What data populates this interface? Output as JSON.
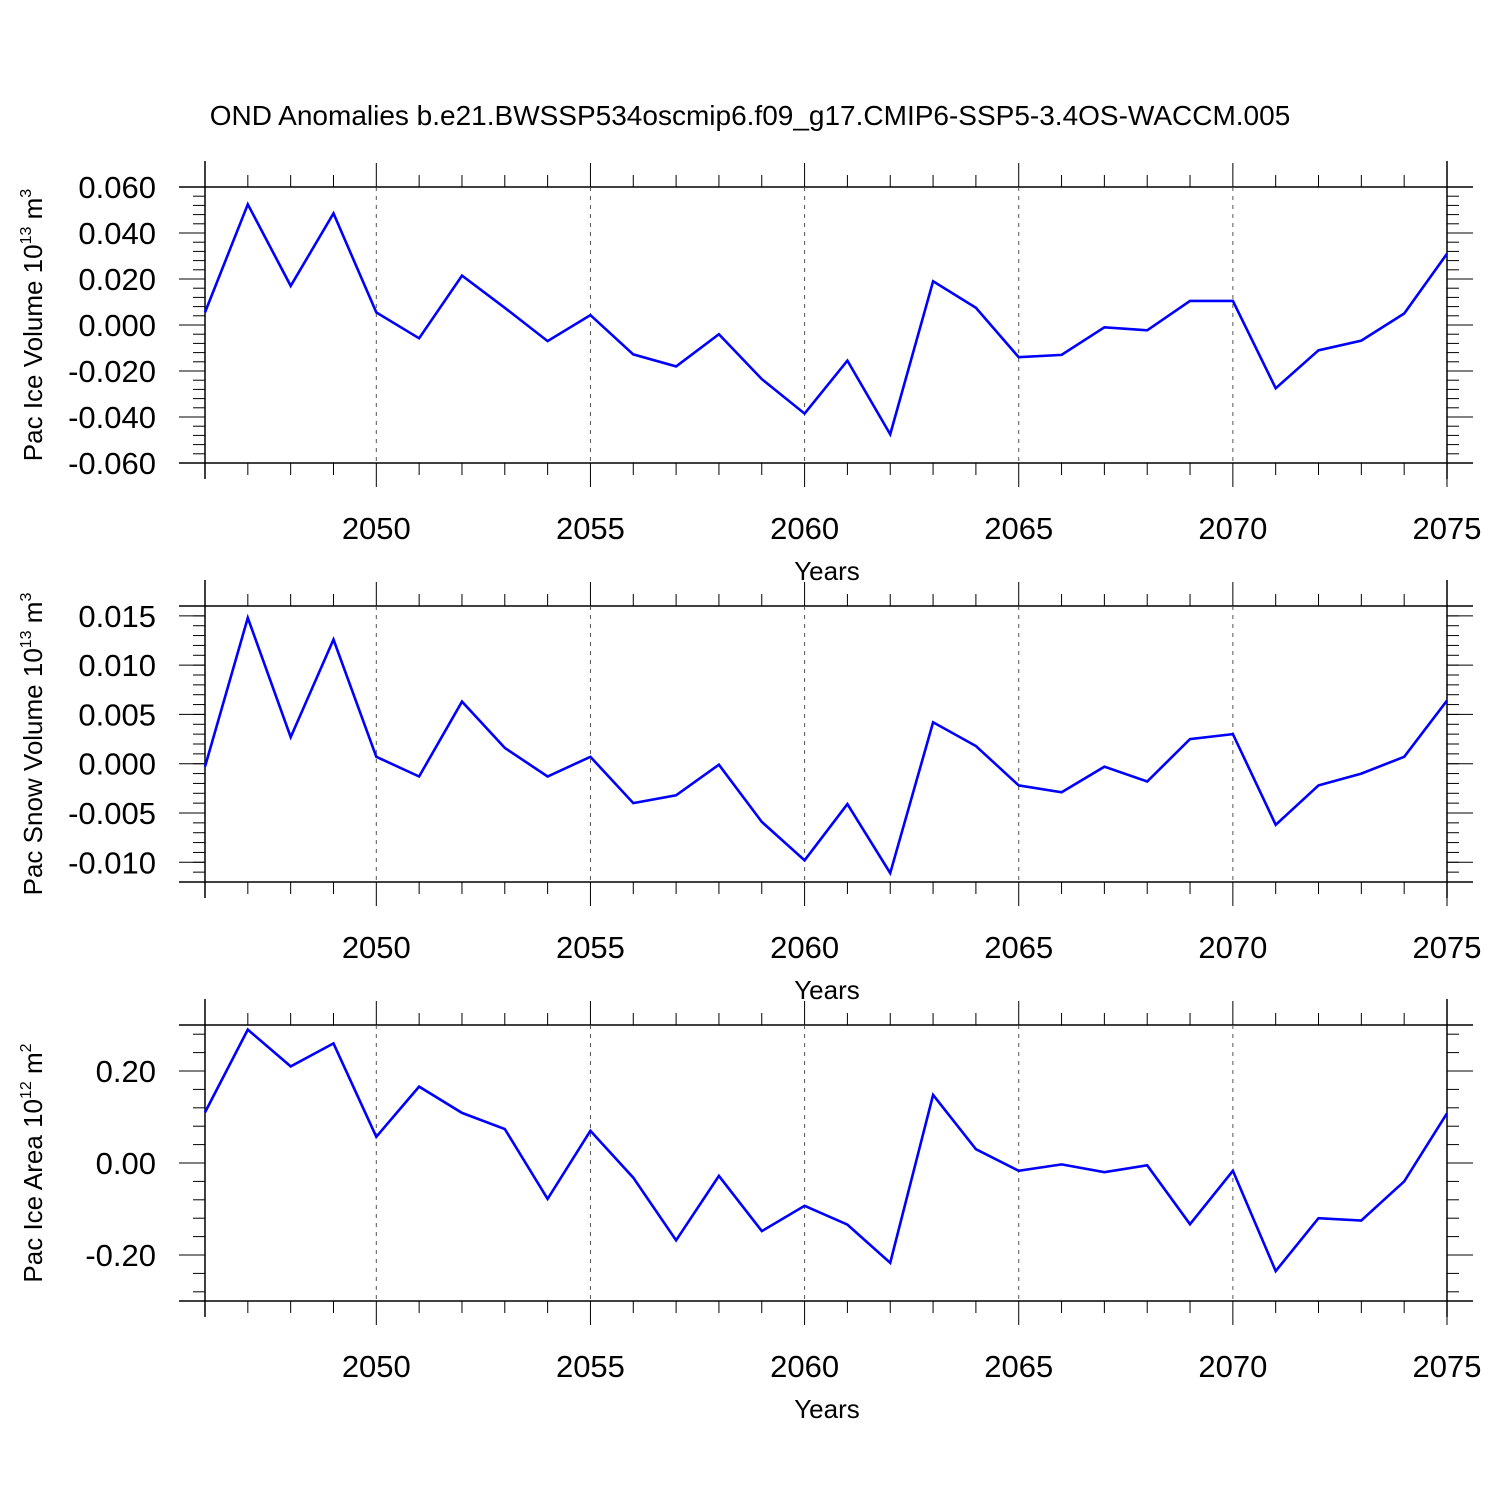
{
  "title": "OND Anomalies b.e21.BWSSP534oscmip6.f09_g17.CMIP6-SSP5-3.4OS-WACCM.005",
  "line_color": "#0000ff",
  "chart_data": [
    {
      "type": "line",
      "ylabel": "Pac Ice Volume 10",
      "ylabel_exp": "13",
      "ylabel_unit": " m",
      "ylabel_unit_exp": "3",
      "xlabel": "Years",
      "xlim": [
        2046,
        2075
      ],
      "ylim": [
        -0.06,
        0.06
      ],
      "yticks": [
        -0.06,
        -0.04,
        -0.02,
        0.0,
        0.02,
        0.04,
        0.06
      ],
      "ytick_labels": [
        "-0.060",
        "-0.040",
        "-0.020",
        "0.000",
        "0.020",
        "0.040",
        "0.060"
      ],
      "xticks": [
        2050,
        2055,
        2060,
        2065,
        2070,
        2075
      ],
      "xtick_labels": [
        "2050",
        "2055",
        "2060",
        "2065",
        "2070",
        "2075"
      ],
      "grid": "vertical dashed at major x ticks",
      "x": [
        2046,
        2047,
        2048,
        2049,
        2050,
        2051,
        2052,
        2053,
        2054,
        2055,
        2056,
        2057,
        2058,
        2059,
        2060,
        2061,
        2062,
        2063,
        2064,
        2065,
        2066,
        2067,
        2068,
        2069,
        2070,
        2071,
        2072,
        2073,
        2074,
        2075
      ],
      "series": [
        {
          "values": [
            0.0055,
            0.0525,
            0.017,
            0.0485,
            0.0055,
            -0.0058,
            0.0215,
            0.0075,
            -0.007,
            0.0043,
            -0.0128,
            -0.018,
            -0.004,
            -0.0235,
            -0.0385,
            -0.0155,
            -0.0475,
            0.019,
            0.0075,
            -0.014,
            -0.013,
            -0.001,
            -0.0023,
            0.0105,
            0.0105,
            -0.0275,
            -0.011,
            -0.0068,
            0.005,
            0.031
          ]
        }
      ]
    },
    {
      "type": "line",
      "ylabel": "Pac Snow Volume 10",
      "ylabel_exp": "13",
      "ylabel_unit": " m",
      "ylabel_unit_exp": "3",
      "xlabel": "Years",
      "xlim": [
        2046,
        2075
      ],
      "ylim": [
        -0.012,
        0.016
      ],
      "yticks": [
        -0.01,
        -0.005,
        0.0,
        0.005,
        0.01,
        0.015
      ],
      "ytick_labels": [
        "-0.010",
        "-0.005",
        "0.000",
        "0.005",
        "0.010",
        "0.015"
      ],
      "xticks": [
        2050,
        2055,
        2060,
        2065,
        2070,
        2075
      ],
      "xtick_labels": [
        "2050",
        "2055",
        "2060",
        "2065",
        "2070",
        "2075"
      ],
      "grid": "vertical dashed at major x ticks",
      "x": [
        2046,
        2047,
        2048,
        2049,
        2050,
        2051,
        2052,
        2053,
        2054,
        2055,
        2056,
        2057,
        2058,
        2059,
        2060,
        2061,
        2062,
        2063,
        2064,
        2065,
        2066,
        2067,
        2068,
        2069,
        2070,
        2071,
        2072,
        2073,
        2074,
        2075
      ],
      "series": [
        {
          "values": [
            -0.0003,
            0.0148,
            0.0027,
            0.0126,
            0.0007,
            -0.0013,
            0.0063,
            0.0016,
            -0.0013,
            0.0007,
            -0.004,
            -0.0032,
            -0.0001,
            -0.0059,
            -0.0098,
            -0.0041,
            -0.0111,
            0.0042,
            0.0018,
            -0.0022,
            -0.0029,
            -0.0003,
            -0.0018,
            0.0025,
            0.003,
            -0.0062,
            -0.0022,
            -0.001,
            0.0007,
            0.0064
          ]
        }
      ]
    },
    {
      "type": "line",
      "ylabel": "Pac Ice Area 10",
      "ylabel_exp": "12",
      "ylabel_unit": " m",
      "ylabel_unit_exp": "2",
      "xlabel": "Years",
      "xlim": [
        2046,
        2075
      ],
      "ylim": [
        -0.3,
        0.3
      ],
      "yticks": [
        -0.2,
        0.0,
        0.2
      ],
      "ytick_labels": [
        "-0.20",
        "0.00",
        "0.20"
      ],
      "xticks": [
        2050,
        2055,
        2060,
        2065,
        2070,
        2075
      ],
      "xtick_labels": [
        "2050",
        "2055",
        "2060",
        "2065",
        "2070",
        "2075"
      ],
      "grid": "vertical dashed at major x ticks",
      "x": [
        2046,
        2047,
        2048,
        2049,
        2050,
        2051,
        2052,
        2053,
        2054,
        2055,
        2056,
        2057,
        2058,
        2059,
        2060,
        2061,
        2062,
        2063,
        2064,
        2065,
        2066,
        2067,
        2068,
        2069,
        2070,
        2071,
        2072,
        2073,
        2074,
        2075
      ],
      "series": [
        {
          "values": [
            0.11,
            0.29,
            0.21,
            0.26,
            0.057,
            0.166,
            0.109,
            0.074,
            -0.078,
            0.07,
            -0.032,
            -0.168,
            -0.028,
            -0.148,
            -0.093,
            -0.134,
            -0.217,
            0.148,
            0.03,
            -0.017,
            -0.003,
            -0.02,
            -0.005,
            -0.133,
            -0.017,
            -0.235,
            -0.12,
            -0.125,
            -0.04,
            0.108
          ]
        }
      ]
    }
  ]
}
